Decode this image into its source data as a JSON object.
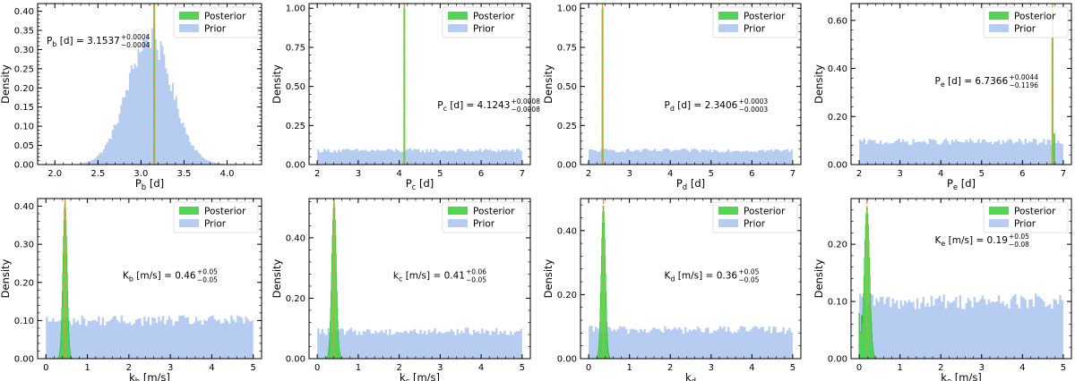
{
  "style": {
    "prior_color": "#aec7f0",
    "posterior_color": "#3fd03f",
    "median_line_color": "#e69a2c",
    "axis_color": "#000000"
  },
  "shared": {
    "ylabel": "Density",
    "legend": [
      {
        "name": "Posterior",
        "color": "#3fd03f"
      },
      {
        "name": "Prior",
        "color": "#aec7f0"
      }
    ],
    "legend_location": "top-right"
  },
  "chart_data": [
    {
      "id": "Pb",
      "type": "histogram",
      "xlabel": {
        "main": "P",
        "sub": "b",
        "tail": " [d]"
      },
      "xlim": [
        1.8,
        4.4
      ],
      "ylim": [
        0,
        0.42
      ],
      "xticks": [
        2.0,
        2.5,
        3.0,
        3.5,
        4.0
      ],
      "xtick_labels": [
        "2.0",
        "2.5",
        "3.0",
        "3.5",
        "4.0"
      ],
      "yticks": [
        0,
        0.05,
        0.1,
        0.15,
        0.2,
        0.25,
        0.3,
        0.35,
        0.4
      ],
      "ytick_labels": [
        "0.00",
        "0.05",
        "0.10",
        "0.15",
        "0.20",
        "0.25",
        "0.30",
        "0.35",
        "0.40"
      ],
      "prior": {
        "shape": "gaussian",
        "range": [
          2.3,
          4.0
        ],
        "mean": 3.1,
        "sd": 0.26,
        "peak": 0.33,
        "bins": 85
      },
      "posterior": {
        "shape": "spike",
        "center": 3.1537,
        "peak": 1.0
      },
      "median_line": 3.1537,
      "annotation": {
        "var": "P",
        "sub": "b",
        "unit": " [d] = ",
        "value": "3.1537",
        "plus": "+0.0004",
        "minus": "−0.0004"
      },
      "annotation_position": "upper-left"
    },
    {
      "id": "Pc",
      "type": "histogram",
      "xlabel": {
        "main": "P",
        "sub": "c",
        "tail": " [d]"
      },
      "xlim": [
        1.8,
        7.2
      ],
      "ylim": [
        0,
        1.03
      ],
      "xticks": [
        2,
        3,
        4,
        5,
        6,
        7
      ],
      "xtick_labels": [
        "2",
        "3",
        "4",
        "5",
        "6",
        "7"
      ],
      "yticks": [
        0,
        0.25,
        0.5,
        0.75,
        1.0
      ],
      "ytick_labels": [
        "0.00",
        "0.25",
        "0.50",
        "0.75",
        "1.00"
      ],
      "prior": {
        "shape": "uniform",
        "range": [
          2,
          7
        ],
        "level": 0.09,
        "bins": 100
      },
      "posterior": {
        "shape": "spike",
        "center": 4.1243,
        "peak": 1.0
      },
      "median_line": 4.1243,
      "annotation": {
        "var": "P",
        "sub": "c",
        "unit": " [d] = ",
        "value": "4.1243",
        "plus": "+0.0008",
        "minus": "−0.0008"
      },
      "annotation_position": "middle-right"
    },
    {
      "id": "Pd",
      "type": "histogram",
      "xlabel": {
        "main": "P",
        "sub": "d",
        "tail": " [d]"
      },
      "xlim": [
        1.8,
        7.2
      ],
      "ylim": [
        0,
        1.03
      ],
      "xticks": [
        2,
        3,
        4,
        5,
        6,
        7
      ],
      "xtick_labels": [
        "2",
        "3",
        "4",
        "5",
        "6",
        "7"
      ],
      "yticks": [
        0,
        0.25,
        0.5,
        0.75,
        1.0
      ],
      "ytick_labels": [
        "0.00",
        "0.25",
        "0.50",
        "0.75",
        "1.00"
      ],
      "prior": {
        "shape": "uniform",
        "range": [
          2,
          7
        ],
        "level": 0.09,
        "bins": 100
      },
      "posterior": {
        "shape": "spike",
        "center": 2.3406,
        "peak": 1.0
      },
      "median_line": 2.3406,
      "annotation": {
        "var": "P",
        "sub": "d",
        "unit": " [d] = ",
        "value": "2.3406",
        "plus": "+0.0003",
        "minus": "−0.0003"
      },
      "annotation_position": "middle-center"
    },
    {
      "id": "Pe",
      "type": "histogram",
      "xlabel": {
        "main": "P",
        "sub": "e",
        "tail": " [d]"
      },
      "xlim": [
        1.8,
        7.2
      ],
      "ylim": [
        0,
        0.67
      ],
      "xticks": [
        2,
        3,
        4,
        5,
        6,
        7
      ],
      "xtick_labels": [
        "2",
        "3",
        "4",
        "5",
        "6",
        "7"
      ],
      "yticks": [
        0,
        0.2,
        0.4,
        0.6
      ],
      "ytick_labels": [
        "0.00",
        "0.20",
        "0.40",
        "0.60"
      ],
      "prior": {
        "shape": "uniform",
        "range": [
          2,
          7
        ],
        "level": 0.095,
        "bins": 100
      },
      "posterior": {
        "shape": "spike",
        "center": 6.7366,
        "peak": 0.65,
        "shoulder": 0.13
      },
      "median_line": 6.7366,
      "annotation": {
        "var": "P",
        "sub": "e",
        "unit": " [d] = ",
        "value": "6.7366",
        "plus": "+0.0044",
        "minus": "−0.1196"
      },
      "annotation_position": "upper-center"
    },
    {
      "id": "kb",
      "type": "histogram",
      "xlabel": {
        "main": "k",
        "sub": "b",
        "tail": " [m/s]"
      },
      "xlim": [
        -0.2,
        5.2
      ],
      "ylim": [
        0,
        0.42
      ],
      "xticks": [
        0,
        1,
        2,
        3,
        4,
        5
      ],
      "xtick_labels": [
        "0",
        "1",
        "2",
        "3",
        "4",
        "5"
      ],
      "yticks": [
        0,
        0.1,
        0.2,
        0.3,
        0.4
      ],
      "ytick_labels": [
        "0.00",
        "0.10",
        "0.20",
        "0.30",
        "0.40"
      ],
      "prior": {
        "shape": "uniform",
        "range": [
          0,
          5
        ],
        "level": 0.1,
        "bins": 100
      },
      "posterior": {
        "shape": "gaussian",
        "center": 0.46,
        "sd": 0.05,
        "peak": 0.41
      },
      "median_line": 0.46,
      "annotation": {
        "var": "K",
        "sub": "b",
        "unit": " [m/s] = ",
        "value": "0.46",
        "plus": "+0.05",
        "minus": "−0.05"
      },
      "annotation_position": "middle-center"
    },
    {
      "id": "kc",
      "type": "histogram",
      "xlabel": {
        "main": "k",
        "sub": "c",
        "tail": " [m/s]"
      },
      "xlim": [
        -0.2,
        5.2
      ],
      "ylim": [
        0,
        0.53
      ],
      "xticks": [
        0,
        1,
        2,
        3,
        4,
        5
      ],
      "xtick_labels": [
        "0",
        "1",
        "2",
        "3",
        "4",
        "5"
      ],
      "yticks": [
        0,
        0.2,
        0.4
      ],
      "ytick_labels": [
        "0.00",
        "0.20",
        "0.40"
      ],
      "prior": {
        "shape": "uniform",
        "range": [
          0,
          5
        ],
        "level": 0.09,
        "bins": 100
      },
      "posterior": {
        "shape": "gaussian",
        "center": 0.41,
        "sd": 0.055,
        "peak": 0.52
      },
      "median_line": 0.41,
      "annotation": {
        "var": "k",
        "sub": "c",
        "unit": " [m/s] = ",
        "value": "0.41",
        "plus": "+0.06",
        "minus": "−0.05"
      },
      "annotation_position": "middle-center"
    },
    {
      "id": "kd",
      "type": "histogram",
      "xlabel": {
        "main": "k",
        "sub": "d",
        "tail": ""
      },
      "xlim": [
        -0.2,
        5.2
      ],
      "ylim": [
        0,
        0.5
      ],
      "xticks": [
        0,
        1,
        2,
        3,
        4,
        5
      ],
      "xtick_labels": [
        "0",
        "1",
        "2",
        "3",
        "4",
        "5"
      ],
      "yticks": [
        0,
        0.2,
        0.4
      ],
      "ytick_labels": [
        "0.00",
        "0.20",
        "0.40"
      ],
      "prior": {
        "shape": "uniform",
        "range": [
          0,
          5
        ],
        "level": 0.09,
        "bins": 100
      },
      "posterior": {
        "shape": "gaussian",
        "center": 0.36,
        "sd": 0.05,
        "peak": 0.48
      },
      "median_line": 0.36,
      "annotation": {
        "var": "K",
        "sub": "d",
        "unit": " [m/s] = ",
        "value": "0.36",
        "plus": "+0.05",
        "minus": "−0.05"
      },
      "annotation_position": "middle-center"
    },
    {
      "id": "ke",
      "type": "histogram",
      "xlabel": {
        "main": "k",
        "sub": "e",
        "tail": " [m/s]"
      },
      "xlim": [
        -0.2,
        5.2
      ],
      "ylim": [
        0,
        0.28
      ],
      "xticks": [
        0,
        1,
        2,
        3,
        4,
        5
      ],
      "xtick_labels": [
        "0",
        "1",
        "2",
        "3",
        "4",
        "5"
      ],
      "yticks": [
        0,
        0.1,
        0.2
      ],
      "ytick_labels": [
        "0.00",
        "0.10",
        "0.20"
      ],
      "prior": {
        "shape": "uniform",
        "range": [
          0,
          5
        ],
        "level": 0.1,
        "bins": 100
      },
      "posterior": {
        "shape": "gaussian",
        "center": 0.19,
        "sd": 0.065,
        "peak": 0.265,
        "low_tail": 0.08
      },
      "median_line": 0.19,
      "annotation": {
        "var": "K",
        "sub": "e",
        "unit": " [m/s] = ",
        "value": "0.19",
        "plus": "+0.05",
        "minus": "−0.08"
      },
      "annotation_position": "upper-center"
    }
  ]
}
